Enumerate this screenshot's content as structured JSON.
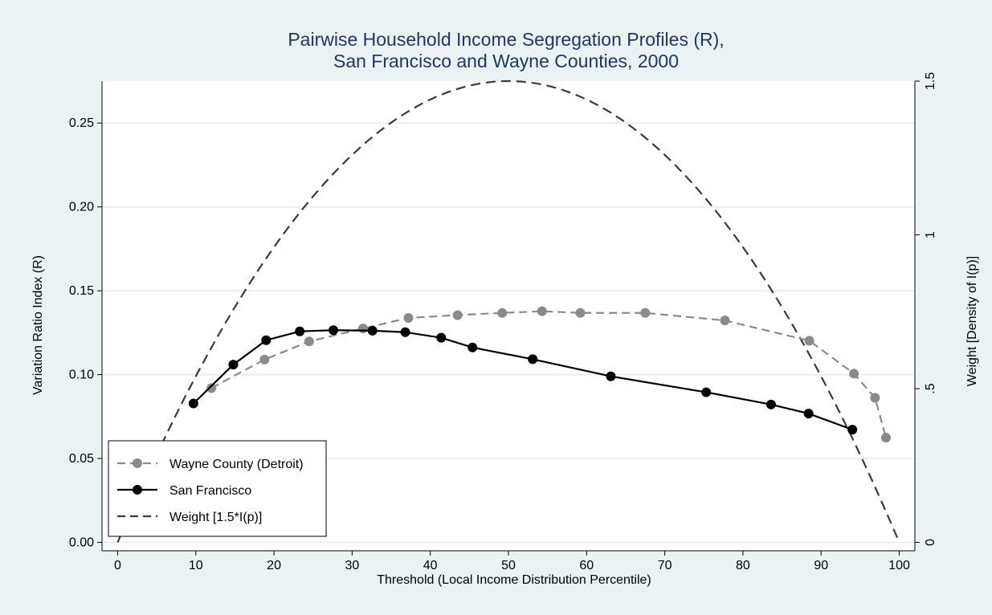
{
  "chart_data": {
    "type": "line",
    "title_lines": [
      "Pairwise Household Income Segregation Profiles (R),",
      "San Francisco and Wayne Counties, 2000"
    ],
    "xlabel": "Threshold (Local Income Distribution Percentile)",
    "ylabel": "Variation Ratio Index (R)",
    "y2label": "Weight [Density of I(p)]",
    "xlim": [
      -2,
      102
    ],
    "ylim": [
      -0.005,
      0.275
    ],
    "y2lim": [
      -0.0273,
      1.5
    ],
    "x_ticks": [
      0,
      10,
      20,
      30,
      40,
      50,
      60,
      70,
      80,
      90,
      100
    ],
    "x_tick_labels": [
      "0",
      "10",
      "20",
      "30",
      "40",
      "50",
      "60",
      "70",
      "80",
      "90",
      "100"
    ],
    "y_ticks": [
      0.0,
      0.05,
      0.1,
      0.15,
      0.2,
      0.25
    ],
    "y_tick_labels": [
      "0.00",
      "0.05",
      "0.10",
      "0.15",
      "0.20",
      "0.25"
    ],
    "y2_ticks": [
      0,
      0.5,
      1,
      1.5
    ],
    "y2_tick_labels": [
      "0",
      ".5",
      "1",
      "1.5"
    ],
    "grid": "horizontal",
    "legend_position": "bottom-left",
    "series": [
      {
        "name": "Wayne County (Detroit)",
        "color": "#8a8a8a",
        "style": "dashed-markers",
        "x": [
          12,
          18.8,
          24.5,
          31.4,
          37.2,
          43.5,
          49.2,
          54.3,
          59.2,
          67.5,
          77.7,
          88.5,
          94.2,
          96.9,
          98.3
        ],
        "y": [
          0.092,
          0.109,
          0.1198,
          0.1275,
          0.1338,
          0.1355,
          0.1368,
          0.1378,
          0.1368,
          0.1368,
          0.1323,
          0.1202,
          0.1006,
          0.0862,
          0.0624
        ]
      },
      {
        "name": "San Francisco",
        "color": "#000000",
        "style": "solid-markers",
        "x": [
          9.7,
          14.8,
          19,
          23.3,
          27.6,
          32.6,
          36.8,
          41.4,
          45.4,
          53.1,
          63.1,
          75.3,
          83.6,
          88.4,
          94
        ],
        "y": [
          0.0828,
          0.106,
          0.1205,
          0.1258,
          0.1265,
          0.1262,
          0.1253,
          0.122,
          0.1162,
          0.1092,
          0.099,
          0.0895,
          0.0822,
          0.0768,
          0.0672
        ]
      },
      {
        "name": "Weight [1.5*I(p)]",
        "color": "#3a3a3a",
        "style": "dashed",
        "axis": "right",
        "function": "1.5*(1-((p-50)/50)^2)"
      }
    ]
  }
}
